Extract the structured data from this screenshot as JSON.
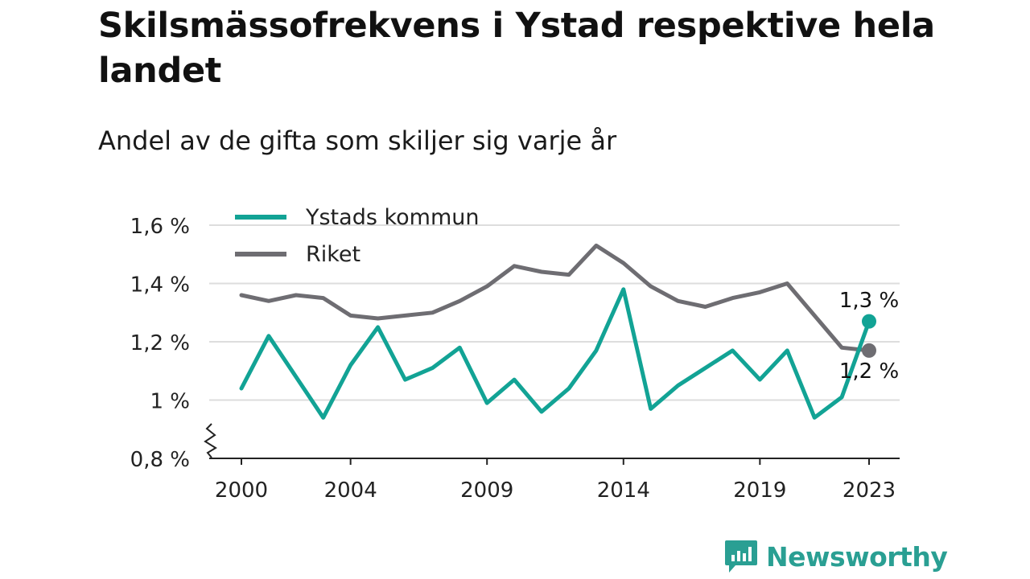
{
  "title": "Skilsmässofrekvens i Ystad respektive hela landet",
  "subtitle": "Andel av de gifta som skiljer sig varje år",
  "brand": {
    "name": "Newsworthy",
    "icon": "newsworthy-logo-icon"
  },
  "colors": {
    "ystad": "#12a395",
    "riket": "#6e6d72",
    "grid": "#dddddd",
    "brand": "#2a9f93"
  },
  "chart_data": {
    "type": "line",
    "x": [
      2000,
      2001,
      2002,
      2003,
      2004,
      2005,
      2006,
      2007,
      2008,
      2009,
      2010,
      2011,
      2012,
      2013,
      2014,
      2015,
      2016,
      2017,
      2018,
      2019,
      2020,
      2021,
      2022,
      2023
    ],
    "x_ticks": [
      2000,
      2004,
      2009,
      2014,
      2019,
      2023
    ],
    "x_tick_labels": [
      "2000",
      "2004",
      "2009",
      "2014",
      "2019",
      "2023"
    ],
    "y_ticks": [
      0.8,
      1.0,
      1.2,
      1.4,
      1.6
    ],
    "y_tick_labels": [
      "0,8 %",
      "1 %",
      "1,2 %",
      "1,4 %",
      "1,6 %"
    ],
    "ylim": [
      0.8,
      1.6
    ],
    "xlabel": "",
    "ylabel": "",
    "axis_break": true,
    "grid": true,
    "legend_position": "top-left",
    "series": [
      {
        "name": "Ystads kommun",
        "color": "#12a395",
        "values": [
          1.04,
          1.22,
          1.08,
          0.94,
          1.12,
          1.25,
          1.07,
          1.11,
          1.18,
          0.99,
          1.07,
          0.96,
          1.04,
          1.17,
          1.38,
          0.97,
          1.05,
          1.11,
          1.17,
          1.07,
          1.17,
          0.94,
          1.01,
          1.27
        ],
        "end_label": "1,3 %"
      },
      {
        "name": "Riket",
        "color": "#6e6d72",
        "values": [
          1.36,
          1.34,
          1.36,
          1.35,
          1.29,
          1.28,
          1.29,
          1.3,
          1.34,
          1.39,
          1.46,
          1.44,
          1.43,
          1.53,
          1.47,
          1.39,
          1.34,
          1.32,
          1.35,
          1.37,
          1.4,
          1.29,
          1.18,
          1.17
        ],
        "end_label": "1,2 %"
      }
    ]
  }
}
